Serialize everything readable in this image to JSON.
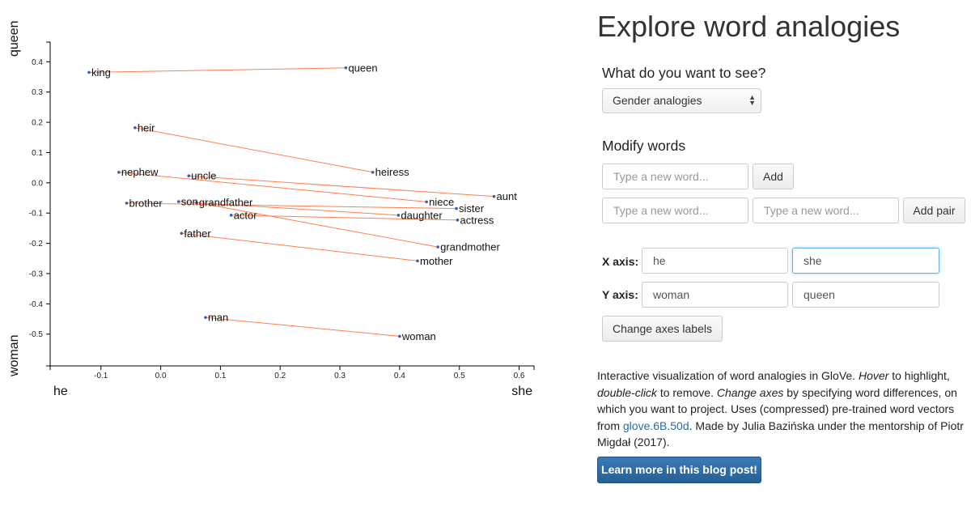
{
  "panel": {
    "title": "Explore word analogies",
    "what_heading": "What do you want to see?",
    "select_value": "Gender analogies",
    "modify_heading": "Modify words",
    "new_word_placeholder": "Type a new word...",
    "pair_placeholder_1": "Type a new word...",
    "pair_placeholder_2": "Type a new word...",
    "add_label": "Add",
    "add_pair_label": "Add pair",
    "x_axis_label": "X axis:",
    "x_axis_from": "he",
    "x_axis_to": "she",
    "y_axis_label": "Y axis:",
    "y_axis_from": "woman",
    "y_axis_to": "queen",
    "change_axes_label": "Change axes labels",
    "desc": {
      "p1": "Interactive visualization of word analogies in GloVe. ",
      "hover": "Hover",
      "p2": " to highlight, ",
      "dblclick": "double-click",
      "p3": " to remove. ",
      "change_axes": "Change axes",
      "p4": " by specifying word differences, on which you want to project. Uses (compressed) pre-trained word vectors from ",
      "link": "glove.6B.50d",
      "p5": ". Made by Julia Bazińska under the mentorship of Piotr Migdał (2017)."
    },
    "blog_button": "Learn more in this blog post!"
  },
  "chart_data": {
    "type": "scatter",
    "x_axis_start": "he",
    "x_axis_end": "she",
    "y_axis_start": "woman",
    "y_axis_end": "queen",
    "xlim": [
      -0.185,
      0.625
    ],
    "ylim": [
      -0.605,
      0.465
    ],
    "x_ticks": [
      "-0.1",
      "0.0",
      "0.1",
      "0.2",
      "0.3",
      "0.4",
      "0.5",
      "0.6"
    ],
    "y_ticks": [
      "0.4",
      "0.3",
      "0.2",
      "0.1",
      "0.0",
      "-0.1",
      "-0.2",
      "-0.3",
      "-0.4",
      "-0.5"
    ],
    "point_color": "#3b5ea8",
    "line_color": "#ff7f50",
    "points": [
      {
        "word": "king",
        "x": -0.12,
        "y": 0.365
      },
      {
        "word": "queen",
        "x": 0.31,
        "y": 0.38
      },
      {
        "word": "heir",
        "x": -0.043,
        "y": 0.182
      },
      {
        "word": "heiress",
        "x": 0.355,
        "y": 0.035
      },
      {
        "word": "nephew",
        "x": -0.07,
        "y": 0.035
      },
      {
        "word": "niece",
        "x": 0.445,
        "y": -0.063
      },
      {
        "word": "uncle",
        "x": 0.047,
        "y": 0.023
      },
      {
        "word": "aunt",
        "x": 0.558,
        "y": -0.045
      },
      {
        "word": "brother",
        "x": -0.057,
        "y": -0.067
      },
      {
        "word": "sister",
        "x": 0.495,
        "y": -0.085
      },
      {
        "word": "son",
        "x": 0.03,
        "y": -0.062
      },
      {
        "word": "daughter",
        "x": 0.398,
        "y": -0.107
      },
      {
        "word": "grandfather",
        "x": 0.06,
        "y": -0.065
      },
      {
        "word": "grandmother",
        "x": 0.464,
        "y": -0.212
      },
      {
        "word": "actor",
        "x": 0.118,
        "y": -0.107
      },
      {
        "word": "actress",
        "x": 0.497,
        "y": -0.123
      },
      {
        "word": "father",
        "x": 0.035,
        "y": -0.167
      },
      {
        "word": "mother",
        "x": 0.43,
        "y": -0.258
      },
      {
        "word": "man",
        "x": 0.075,
        "y": -0.445
      },
      {
        "word": "woman",
        "x": 0.4,
        "y": -0.507
      }
    ],
    "pairs": [
      [
        "king",
        "queen"
      ],
      [
        "heir",
        "heiress"
      ],
      [
        "nephew",
        "niece"
      ],
      [
        "uncle",
        "aunt"
      ],
      [
        "brother",
        "sister"
      ],
      [
        "son",
        "daughter"
      ],
      [
        "grandfather",
        "grandmother"
      ],
      [
        "actor",
        "actress"
      ],
      [
        "father",
        "mother"
      ],
      [
        "man",
        "woman"
      ]
    ]
  }
}
